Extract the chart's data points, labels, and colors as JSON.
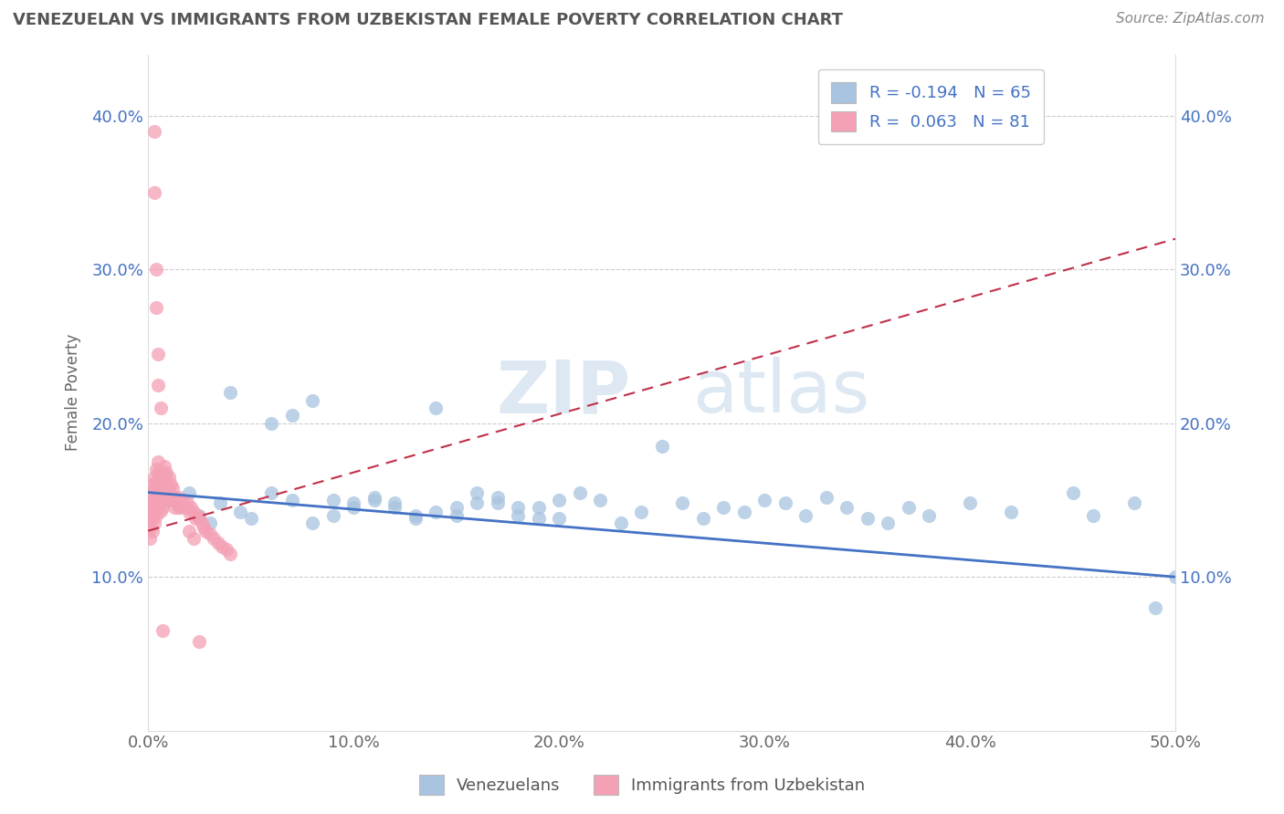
{
  "title": "VENEZUELAN VS IMMIGRANTS FROM UZBEKISTAN FEMALE POVERTY CORRELATION CHART",
  "source_text": "Source: ZipAtlas.com",
  "ylabel": "Female Poverty",
  "legend_entry1": "R = -0.194   N = 65",
  "legend_entry2": "R =  0.063   N = 81",
  "legend_label1": "Venezuelans",
  "legend_label2": "Immigrants from Uzbekistan",
  "color_blue": "#a8c4e0",
  "color_pink": "#f4a0b5",
  "line_color_blue": "#4472c4",
  "line_color_pink": "#c0304a",
  "xmin": 0.0,
  "xmax": 0.5,
  "ymin": 0.0,
  "ymax": 0.44,
  "yticks": [
    0.1,
    0.2,
    0.3,
    0.4
  ],
  "xticks": [
    0.0,
    0.1,
    0.2,
    0.3,
    0.4,
    0.5
  ],
  "background_color": "#ffffff",
  "blue_trend_start_y": 0.155,
  "blue_trend_end_y": 0.1,
  "pink_trend_start_y": 0.13,
  "pink_trend_end_y": 0.32,
  "blue_scatter_x": [
    0.005,
    0.01,
    0.015,
    0.02,
    0.025,
    0.03,
    0.035,
    0.04,
    0.045,
    0.05,
    0.06,
    0.07,
    0.08,
    0.09,
    0.1,
    0.11,
    0.12,
    0.13,
    0.14,
    0.15,
    0.06,
    0.07,
    0.08,
    0.09,
    0.1,
    0.11,
    0.12,
    0.13,
    0.14,
    0.15,
    0.16,
    0.17,
    0.18,
    0.19,
    0.2,
    0.16,
    0.17,
    0.18,
    0.19,
    0.2,
    0.21,
    0.22,
    0.23,
    0.24,
    0.25,
    0.26,
    0.27,
    0.28,
    0.29,
    0.3,
    0.31,
    0.32,
    0.35,
    0.37,
    0.4,
    0.42,
    0.45,
    0.46,
    0.48,
    0.5,
    0.33,
    0.34,
    0.36,
    0.38,
    0.49
  ],
  "blue_scatter_y": [
    0.16,
    0.15,
    0.145,
    0.155,
    0.14,
    0.135,
    0.148,
    0.22,
    0.142,
    0.138,
    0.2,
    0.205,
    0.215,
    0.15,
    0.148,
    0.152,
    0.145,
    0.14,
    0.21,
    0.145,
    0.155,
    0.15,
    0.135,
    0.14,
    0.145,
    0.15,
    0.148,
    0.138,
    0.142,
    0.14,
    0.148,
    0.152,
    0.145,
    0.138,
    0.15,
    0.155,
    0.148,
    0.14,
    0.145,
    0.138,
    0.155,
    0.15,
    0.135,
    0.142,
    0.185,
    0.148,
    0.138,
    0.145,
    0.142,
    0.15,
    0.148,
    0.14,
    0.138,
    0.145,
    0.148,
    0.142,
    0.155,
    0.14,
    0.148,
    0.1,
    0.152,
    0.145,
    0.135,
    0.14,
    0.08
  ],
  "pink_scatter_x": [
    0.001,
    0.001,
    0.001,
    0.001,
    0.001,
    0.002,
    0.002,
    0.002,
    0.002,
    0.002,
    0.003,
    0.003,
    0.003,
    0.003,
    0.003,
    0.004,
    0.004,
    0.004,
    0.004,
    0.004,
    0.005,
    0.005,
    0.005,
    0.005,
    0.005,
    0.006,
    0.006,
    0.006,
    0.006,
    0.007,
    0.007,
    0.007,
    0.007,
    0.008,
    0.008,
    0.008,
    0.009,
    0.009,
    0.009,
    0.01,
    0.01,
    0.01,
    0.011,
    0.011,
    0.012,
    0.012,
    0.013,
    0.013,
    0.014,
    0.015,
    0.015,
    0.016,
    0.017,
    0.018,
    0.019,
    0.02,
    0.021,
    0.022,
    0.023,
    0.024,
    0.025,
    0.026,
    0.027,
    0.028,
    0.03,
    0.032,
    0.034,
    0.036,
    0.038,
    0.04,
    0.003,
    0.003,
    0.004,
    0.004,
    0.005,
    0.005,
    0.006,
    0.007,
    0.02,
    0.022,
    0.025
  ],
  "pink_scatter_y": [
    0.155,
    0.148,
    0.14,
    0.132,
    0.125,
    0.16,
    0.152,
    0.145,
    0.138,
    0.13,
    0.165,
    0.158,
    0.15,
    0.143,
    0.135,
    0.17,
    0.162,
    0.155,
    0.148,
    0.14,
    0.175,
    0.168,
    0.16,
    0.153,
    0.145,
    0.165,
    0.158,
    0.15,
    0.143,
    0.168,
    0.16,
    0.153,
    0.145,
    0.172,
    0.165,
    0.158,
    0.168,
    0.16,
    0.152,
    0.165,
    0.158,
    0.15,
    0.16,
    0.152,
    0.158,
    0.15,
    0.152,
    0.145,
    0.148,
    0.152,
    0.145,
    0.15,
    0.148,
    0.145,
    0.148,
    0.142,
    0.145,
    0.142,
    0.138,
    0.14,
    0.138,
    0.135,
    0.132,
    0.13,
    0.128,
    0.125,
    0.122,
    0.12,
    0.118,
    0.115,
    0.39,
    0.35,
    0.3,
    0.275,
    0.245,
    0.225,
    0.21,
    0.065,
    0.13,
    0.125,
    0.058
  ]
}
